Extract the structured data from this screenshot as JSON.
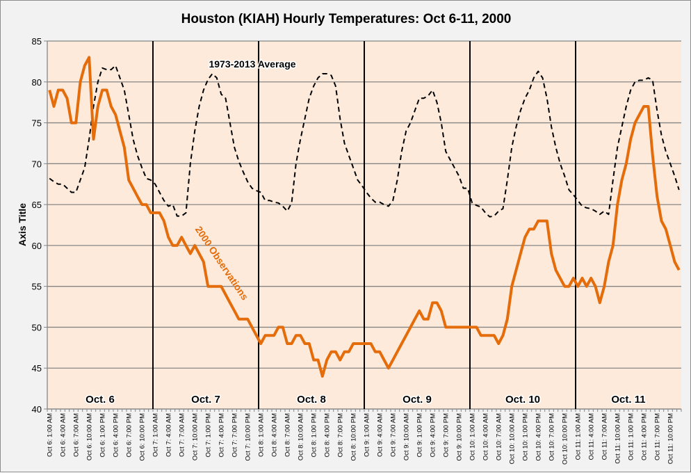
{
  "chart_data": {
    "type": "line",
    "title": "Houston (KIAH) Hourly Temperatures: Oct 6-11, 2000",
    "xlabel": "",
    "ylabel": "Axis Title",
    "ylim": [
      40,
      85
    ],
    "y_ticks": [
      40,
      45,
      50,
      55,
      60,
      65,
      70,
      75,
      80,
      85
    ],
    "grid": "horizontal",
    "legend": "none",
    "x_tick_interval_hours": 3,
    "x_tick_labels": [
      "Oct 6: 1:00 AM",
      "Oct 6: 4:00 AM",
      "Oct 6: 7:00 AM",
      "Oct 6: 10:00 AM",
      "Oct 6: 1:00 PM",
      "Oct 6: 4:00 PM",
      "Oct 6: 7:00 PM",
      "Oct 6: 10:00 PM",
      "Oct 7: 1:00 AM",
      "Oct 7: 4:00 AM",
      "Oct 7: 7:00 AM",
      "Oct 7: 10:00 AM",
      "Oct 7: 1:00 PM",
      "Oct 7: 4:00 PM",
      "Oct 7: 7:00 PM",
      "Oct 7: 10:00 PM",
      "Oct 8: 1:00 AM",
      "Oct 8: 4:00 AM",
      "Oct 8: 7:00 AM",
      "Oct 8: 10:00 AM",
      "Oct 8: 1:00 PM",
      "Oct 8: 4:00 PM",
      "Oct 8: 7:00 PM",
      "Oct 8: 10:00 PM",
      "Oct 9: 1:00 AM",
      "Oct 9: 4:00 AM",
      "Oct 9: 7:00 AM",
      "Oct 9: 10:00 AM",
      "Oct 9: 1:00 PM",
      "Oct 9: 4:00 PM",
      "Oct 9: 7:00 PM",
      "Oct 9: 10:00 PM",
      "Oct 10: 1:00 AM",
      "Oct 10: 4:00 AM",
      "Oct 10: 7:00 AM",
      "Oct 10: 10:00 AM",
      "Oct 10: 1:00 PM",
      "Oct 10: 4:00 PM",
      "Oct 10: 7:00 PM",
      "Oct 10: 10:00 PM",
      "Oct 11: 1:00 AM",
      "Oct 11: 4:00 AM",
      "Oct 11: 7:00 AM",
      "Oct 11: 10:00 AM",
      "Oct 11: 1:00 PM",
      "Oct 11: 4:00 PM",
      "Oct 11: 7:00 PM",
      "Oct 11: 10:00 PM"
    ],
    "day_labels": [
      "Oct. 6",
      "Oct. 7",
      "Oct. 8",
      "Oct. 9",
      "Oct. 10",
      "Oct. 11"
    ],
    "series": [
      {
        "name": "1973-2013 Average",
        "color": "#000000",
        "style": "dashed",
        "values": [
          68.2,
          67.8,
          67.5,
          67.5,
          67.0,
          66.5,
          66.5,
          68.0,
          69.5,
          73.0,
          77.0,
          80.0,
          81.7,
          81.5,
          81.5,
          82.0,
          80.5,
          79.0,
          76.0,
          73.0,
          71.0,
          69.5,
          68.2,
          68.0,
          67.5,
          66.5,
          65.5,
          64.8,
          65.0,
          63.6,
          63.6,
          64.0,
          70.0,
          74.0,
          77.0,
          79.0,
          80.3,
          81.0,
          80.5,
          78.5,
          78.0,
          75.0,
          72.0,
          70.3,
          69.0,
          67.8,
          67.0,
          66.7,
          66.5,
          65.5,
          65.5,
          65.3,
          65.2,
          64.8,
          64.2,
          65.2,
          70.0,
          73.0,
          75.5,
          78.0,
          79.5,
          80.5,
          81.0,
          81.0,
          80.8,
          79.5,
          75.5,
          72.5,
          71.0,
          69.5,
          68.0,
          67.3,
          66.5,
          65.8,
          65.3,
          65.3,
          65.0,
          64.8,
          65.5,
          68.0,
          71.5,
          74.0,
          75.0,
          76.5,
          78.0,
          78.0,
          78.3,
          79.0,
          77.5,
          75.0,
          71.5,
          70.5,
          69.5,
          68.5,
          67.0,
          67.0,
          65.2,
          64.9,
          64.7,
          64.0,
          63.5,
          63.6,
          64.2,
          64.5,
          68.0,
          72.0,
          74.5,
          76.5,
          78.0,
          79.0,
          80.5,
          81.3,
          80.5,
          78.0,
          74.5,
          72.0,
          70.0,
          68.5,
          66.8,
          66.2,
          65.5,
          64.8,
          64.6,
          64.5,
          64.2,
          63.8,
          64.2,
          63.8,
          68.0,
          72.0,
          74.5,
          77.0,
          79.0,
          80.0,
          80.2,
          80.2,
          80.5,
          80.2,
          76.5,
          73.5,
          71.5,
          70.0,
          68.5,
          66.8
        ]
      },
      {
        "name": "2000 Observations",
        "color": "#e46c0a",
        "style": "solid",
        "values": [
          79,
          77,
          79,
          79,
          78,
          75,
          75,
          80,
          82,
          83,
          73,
          77,
          79,
          79,
          77,
          76,
          74,
          72,
          68,
          67,
          66,
          65,
          65,
          64,
          64,
          64,
          63,
          61,
          60,
          60,
          61,
          60,
          59,
          60,
          59,
          58,
          55,
          55,
          55,
          55,
          54,
          53,
          52,
          51,
          51,
          51,
          50,
          49,
          48,
          49,
          49,
          49,
          50,
          50,
          48,
          48,
          49,
          49,
          48,
          48,
          46,
          46,
          44,
          46,
          47,
          47,
          46,
          47,
          47,
          48,
          48,
          48,
          48,
          48,
          47,
          47,
          46,
          45,
          46,
          47,
          48,
          49,
          50,
          51,
          52,
          51,
          51,
          53,
          53,
          52,
          50,
          50,
          50,
          50,
          50,
          50,
          50,
          50,
          49,
          49,
          49,
          49,
          48,
          49,
          51,
          55,
          57,
          59,
          61,
          62,
          62,
          63,
          63,
          63,
          59,
          57,
          56,
          55,
          55,
          56,
          55,
          56,
          55,
          56,
          55,
          53,
          55,
          58,
          60,
          65,
          68,
          70,
          73,
          75,
          76,
          77,
          77,
          71,
          66,
          63,
          62,
          60,
          58,
          57
        ]
      }
    ],
    "annotations": [
      "1973-2013 Average",
      "2000 Observations"
    ],
    "colors": {
      "plot_background": "#fdeadb",
      "chart_background": "#f2f2f2",
      "grid": "#868686",
      "day_divider": "#000000"
    }
  }
}
